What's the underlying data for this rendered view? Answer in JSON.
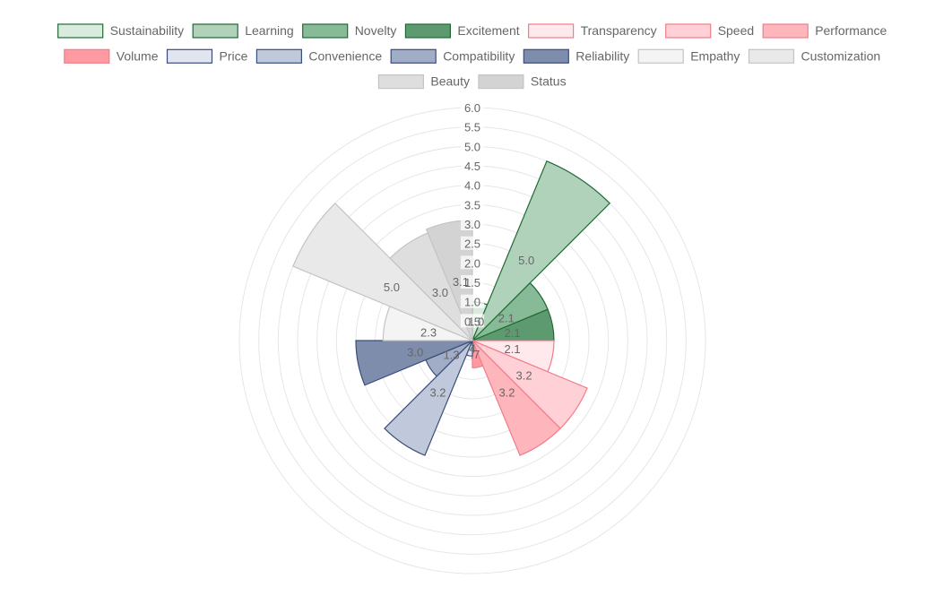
{
  "chart_data": {
    "type": "polarArea",
    "title": "",
    "r_range": [
      0,
      6
    ],
    "r_ticks": [
      "6.0",
      "5.5",
      "5.0",
      "4.5",
      "4.0",
      "3.5",
      "3.0",
      "2.5",
      "2.0",
      "1.5",
      "1.0",
      "0.5"
    ],
    "grid": true,
    "legend_position": "top",
    "categories": [
      "Sustainability",
      "Learning",
      "Novelty",
      "Excitement",
      "Transparency",
      "Speed",
      "Performance",
      "Volume",
      "Price",
      "Convenience",
      "Compatibility",
      "Reliability",
      "Empathy",
      "Customization",
      "Beauty",
      "Status"
    ],
    "values": [
      1.0,
      5.0,
      2.1,
      2.1,
      2.1,
      3.2,
      3.2,
      0.7,
      0.4,
      3.2,
      1.3,
      3.0,
      2.3,
      5.0,
      3.0,
      3.1
    ],
    "value_labels": [
      "1.0",
      "5.0",
      "2.1",
      "2.1",
      "2.1",
      "3.2",
      "3.2",
      ".7",
      ".4",
      "3.2",
      "1.3",
      "3.0",
      "2.3",
      "5.0",
      "3.0",
      "3.1"
    ],
    "colors": {
      "fills": [
        "#d9ebdf",
        "#b0d2bb",
        "#87ba97",
        "#5d9a70",
        "#ffe9ec",
        "#ffd1d6",
        "#ffb5bc",
        "#ff9aa3",
        "#e0e5ef",
        "#c0c9db",
        "#a1adc6",
        "#7f8dad",
        "#f4f4f4",
        "#e9e9e9",
        "#dedede",
        "#d3d3d3"
      ],
      "borders": [
        "#1f6a33",
        "#1f6a33",
        "#1f6a33",
        "#1f6a33",
        "#f07d89",
        "#f07d89",
        "#f07d89",
        "#f07d89",
        "#3b4d78",
        "#3b4d78",
        "#3b4d78",
        "#3b4d78",
        "#c4c4c4",
        "#c4c4c4",
        "#c4c4c4",
        "#c4c4c4"
      ]
    }
  }
}
